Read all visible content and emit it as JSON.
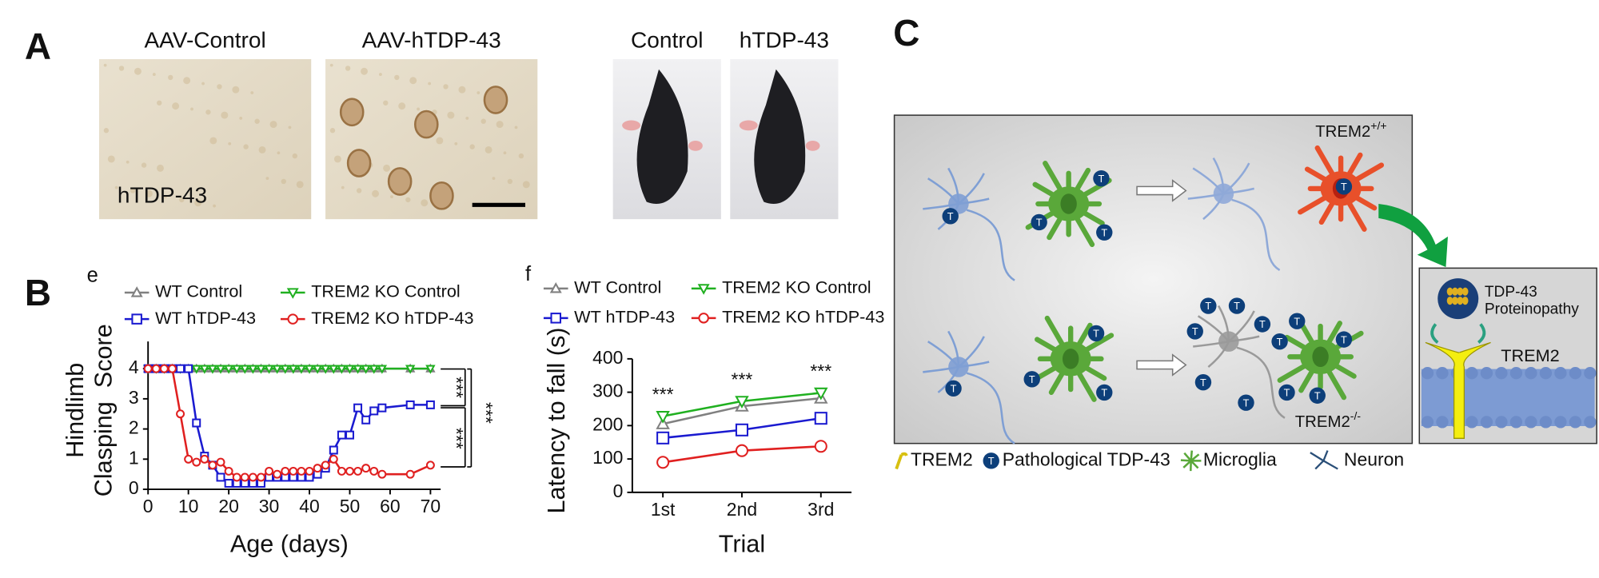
{
  "panels": {
    "a": "A",
    "b": "B",
    "c": "C"
  },
  "photos": {
    "titles": [
      "AAV-Control",
      "AAV-hTDP-43",
      "Control",
      "hTDP-43"
    ],
    "inset": "hTDP-43"
  },
  "chart_data": [
    {
      "type": "line",
      "panel_tag": "e",
      "xlabel": "Age (days)",
      "ylabel_lines": [
        "Hindlimb",
        "Clasping  Score"
      ],
      "x": [
        0,
        2,
        4,
        6,
        8,
        10,
        12,
        14,
        16,
        18,
        20,
        22,
        24,
        26,
        28,
        30,
        32,
        34,
        36,
        38,
        40,
        42,
        44,
        46,
        48,
        50,
        52,
        54,
        56,
        58,
        65,
        70
      ],
      "xlim": [
        0,
        70
      ],
      "xticks": [
        0,
        10,
        20,
        30,
        40,
        50,
        60,
        70
      ],
      "ylim": [
        0,
        4.9
      ],
      "yticks": [
        0,
        1,
        2,
        3,
        4
      ],
      "grid": false,
      "series": [
        {
          "name": "WT Control",
          "color": "#808080",
          "marker": "triangle-up",
          "values": [
            4,
            4,
            4,
            4,
            4,
            4,
            4,
            4,
            4,
            4,
            4,
            4,
            4,
            4,
            4,
            4,
            4,
            4,
            4,
            4,
            4,
            4,
            4,
            4,
            4,
            4,
            4,
            4,
            4,
            4,
            4,
            4
          ]
        },
        {
          "name": "TREM2 KO Control",
          "color": "#20b020",
          "marker": "triangle-down",
          "values": [
            4,
            4,
            4,
            4,
            4,
            4,
            4,
            4,
            4,
            4,
            4,
            4,
            4,
            4,
            4,
            4,
            4,
            4,
            4,
            4,
            4,
            4,
            4,
            4,
            4,
            4,
            4,
            4,
            4,
            4,
            4,
            4
          ]
        },
        {
          "name": "WT hTDP-43",
          "color": "#1a1ad0",
          "marker": "square",
          "values": [
            4,
            4,
            4,
            4,
            4,
            4,
            2.2,
            1.1,
            0.8,
            0.4,
            0.2,
            0.2,
            0.2,
            0.2,
            0.2,
            0.4,
            0.4,
            0.4,
            0.4,
            0.4,
            0.4,
            0.5,
            0.7,
            1.3,
            1.8,
            1.8,
            2.7,
            2.3,
            2.6,
            2.7,
            2.8,
            2.8
          ]
        },
        {
          "name": "TREM2 KO hTDP-43",
          "color": "#e02020",
          "marker": "circle",
          "values": [
            4,
            4,
            4,
            4,
            2.5,
            1.0,
            0.9,
            1.0,
            0.8,
            0.9,
            0.6,
            0.4,
            0.4,
            0.4,
            0.4,
            0.6,
            0.5,
            0.6,
            0.6,
            0.6,
            0.6,
            0.7,
            0.8,
            1.0,
            0.6,
            0.6,
            0.6,
            0.7,
            0.6,
            0.5,
            0.5,
            0.8
          ]
        }
      ],
      "annotations": [
        "***",
        "***",
        "***"
      ]
    },
    {
      "type": "line",
      "panel_tag": "f",
      "xlabel": "Trial",
      "ylabel_lines": [
        "Latency to fall (s)"
      ],
      "categories": [
        "1st",
        "2nd",
        "3rd"
      ],
      "ylim": [
        0,
        400
      ],
      "yticks": [
        0,
        100,
        200,
        300,
        400
      ],
      "grid": false,
      "series": [
        {
          "name": "WT Control",
          "color": "#808080",
          "marker": "triangle-up",
          "values": [
            205,
            258,
            282
          ]
        },
        {
          "name": "TREM2 KO Control",
          "color": "#20b020",
          "marker": "triangle-down",
          "values": [
            228,
            273,
            298
          ]
        },
        {
          "name": "WT hTDP-43",
          "color": "#1a1ad0",
          "marker": "square",
          "values": [
            163,
            187,
            222
          ]
        },
        {
          "name": "TREM2 KO hTDP-43",
          "color": "#e02020",
          "marker": "circle",
          "values": [
            90,
            125,
            138
          ]
        }
      ],
      "annotations": [
        "***",
        "***",
        "***"
      ]
    }
  ],
  "diagram": {
    "top_state": {
      "text": "TREM2",
      "sup": "+/+"
    },
    "bottom_state": {
      "text": "TREM2",
      "sup": "-/-"
    },
    "token": "T",
    "inset_title": [
      "TDP-43",
      "Proteinopathy"
    ],
    "inset_receptor": "TREM2",
    "legend": [
      "TREM2",
      "Pathological TDP-43",
      "Microglia",
      "Neuron"
    ]
  }
}
